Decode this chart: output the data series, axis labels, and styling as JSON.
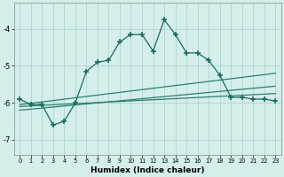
{
  "xlabel": "Humidex (Indice chaleur)",
  "bg_color": "#d4eeeb",
  "grid_color": "#aacfca",
  "line_color": "#1a6b60",
  "line_color2": "#2a8070",
  "xlim": [
    -0.5,
    23.5
  ],
  "ylim": [
    -7.4,
    -3.3
  ],
  "xticks": [
    0,
    1,
    2,
    3,
    4,
    5,
    6,
    7,
    8,
    9,
    10,
    11,
    12,
    13,
    14,
    15,
    16,
    17,
    18,
    19,
    20,
    21,
    22,
    23
  ],
  "yticks": [
    -7,
    -6,
    -5,
    -4
  ],
  "line1_x": [
    0,
    1,
    2,
    3,
    4,
    5,
    6,
    7,
    8,
    9,
    10,
    11,
    12,
    13,
    14,
    15,
    16,
    17,
    18,
    19,
    20,
    21,
    22,
    23
  ],
  "line1_y": [
    -5.9,
    -6.05,
    -6.05,
    -6.6,
    -6.5,
    -6.0,
    -5.15,
    -4.9,
    -4.85,
    -4.35,
    -4.15,
    -4.15,
    -4.6,
    -3.75,
    -4.15,
    -4.65,
    -4.65,
    -4.85,
    -5.25,
    -5.85,
    -5.85,
    -5.9,
    -5.9,
    -5.95
  ],
  "line3_x": [
    0,
    23
  ],
  "line3_y": [
    -6.05,
    -5.2
  ],
  "line4_x": [
    0,
    23
  ],
  "line4_y": [
    -6.1,
    -5.75
  ],
  "line5_x": [
    0,
    23
  ],
  "line5_y": [
    -6.2,
    -5.55
  ]
}
